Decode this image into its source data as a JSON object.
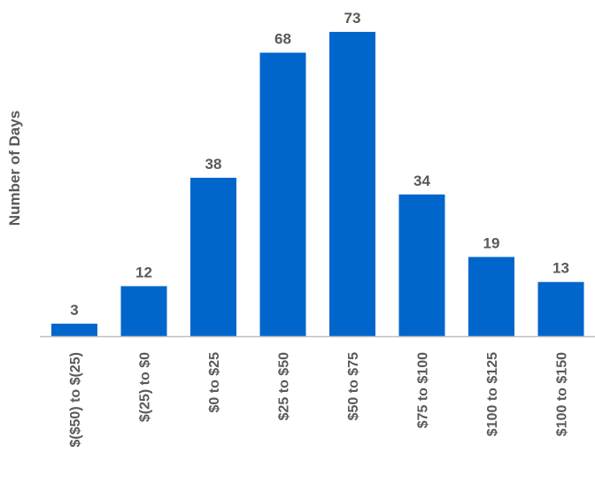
{
  "chart_data": {
    "type": "bar",
    "title": "",
    "xlabel": "",
    "ylabel": "Number of Days",
    "categories": [
      "$($50) to $(25)",
      "$(25) to $0",
      "$0 to $25",
      "$25 to $50",
      "$50 to $75",
      "$75 to $100",
      "$100 to $125",
      "$100 to $150"
    ],
    "values": [
      3,
      12,
      38,
      68,
      73,
      34,
      19,
      13
    ],
    "ylim": [
      0,
      73
    ],
    "grid": false,
    "data_labels": true,
    "bar_color": "#0066CC",
    "text_color": "#595959"
  }
}
